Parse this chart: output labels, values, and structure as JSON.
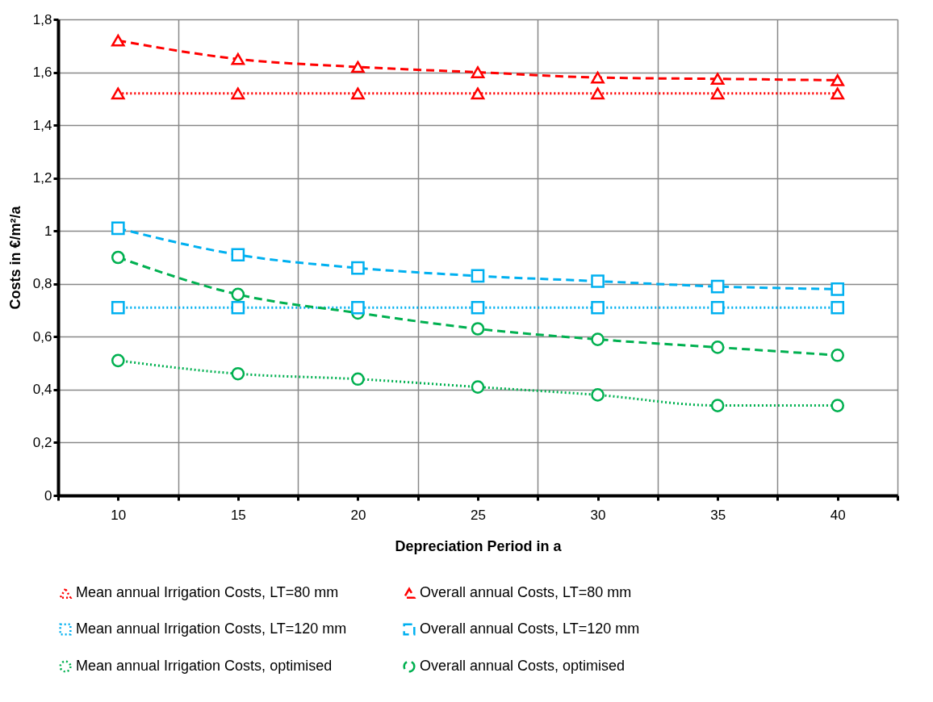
{
  "chart_data": {
    "type": "line",
    "xlabel": "Depreciation Period in a",
    "ylabel": "Costs in €/m²/a",
    "x": [
      10,
      15,
      20,
      25,
      30,
      35,
      40
    ],
    "xlim": [
      7.5,
      42.5
    ],
    "xticks": [
      {
        "value": 7.5,
        "label": null
      },
      10,
      {
        "value": 12.5,
        "label": null
      },
      15,
      {
        "value": 17.5,
        "label": null
      },
      20,
      {
        "value": 22.5,
        "label": null
      },
      25,
      {
        "value": 27.5,
        "label": null
      },
      30,
      {
        "value": 32.5,
        "label": null
      },
      35,
      {
        "value": 37.5,
        "label": null
      },
      40,
      {
        "value": 42.5,
        "label": null
      }
    ],
    "ylim": [
      0,
      1.8
    ],
    "yticks": [
      0,
      {
        "value": 0.2,
        "label": "0,2"
      },
      {
        "value": 0.4,
        "label": "0,4"
      },
      {
        "value": 0.6,
        "label": "0,6"
      },
      {
        "value": 0.8,
        "label": "0,8"
      },
      1,
      {
        "value": 1.2,
        "label": "1,2"
      },
      {
        "value": 1.4,
        "label": "1,4"
      },
      {
        "value": 1.6,
        "label": "1,6"
      },
      {
        "value": 1.8,
        "label": "1,8"
      }
    ],
    "grid": true,
    "legend": "bottom",
    "series": [
      {
        "name": "Mean annual Irrigation  Costs, LT=80 mm",
        "color": "#ff0000",
        "marker": "triangle",
        "line_style": "dotted",
        "values": [
          1.52,
          1.52,
          1.52,
          1.52,
          1.52,
          1.52,
          1.52
        ]
      },
      {
        "name": "Overall annual Costs, LT=80 mm",
        "color": "#ff0000",
        "marker": "triangle",
        "line_style": "dashed",
        "values": [
          1.72,
          1.65,
          1.62,
          1.6,
          1.58,
          1.575,
          1.57
        ]
      },
      {
        "name": "Mean annual Irrigation  Costs, LT=120 mm",
        "color": "#00b0f0",
        "marker": "square",
        "line_style": "dotted",
        "values": [
          0.71,
          0.71,
          0.71,
          0.71,
          0.71,
          0.71,
          0.71
        ]
      },
      {
        "name": "Overall annual Costs, LT=120 mm",
        "color": "#00b0f0",
        "marker": "square",
        "line_style": "dashed",
        "values": [
          1.01,
          0.91,
          0.86,
          0.83,
          0.81,
          0.79,
          0.78
        ]
      },
      {
        "name": "Mean annual Irrigation Costs, optimised",
        "color": "#00b050",
        "marker": "circle",
        "line_style": "dotted",
        "values": [
          0.51,
          0.46,
          0.44,
          0.41,
          0.38,
          0.34,
          0.34
        ]
      },
      {
        "name": "Overall annual Costs, optimised",
        "color": "#00b050",
        "marker": "circle",
        "line_style": "dashed",
        "values": [
          0.9,
          0.76,
          0.69,
          0.63,
          0.59,
          0.56,
          0.53
        ]
      }
    ]
  }
}
